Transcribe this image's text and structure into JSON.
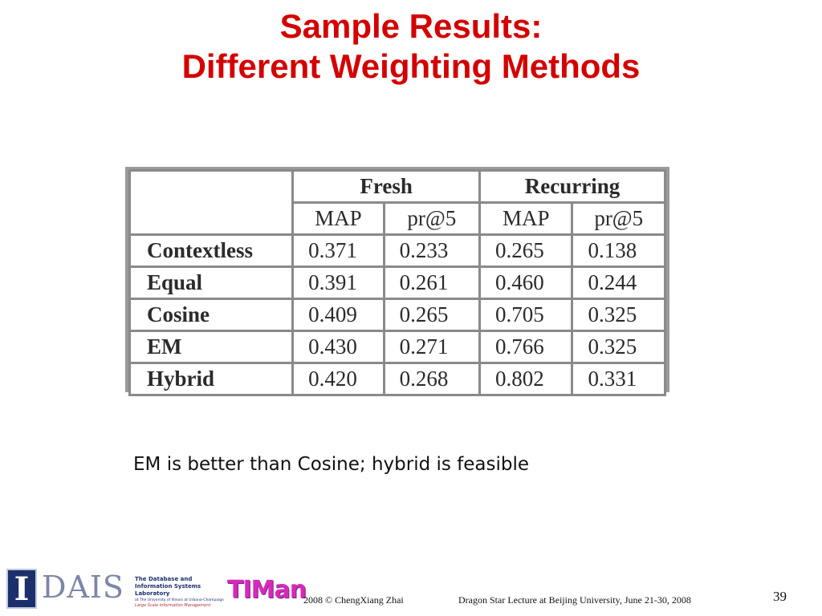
{
  "slide": {
    "title_line1": "Sample Results:",
    "title_line2": "Different Weighting Methods"
  },
  "table": {
    "group_headers": [
      "Fresh",
      "Recurring"
    ],
    "sub_headers": [
      "MAP",
      "pr@5",
      "MAP",
      "pr@5"
    ],
    "rows": [
      {
        "label": "Contextless",
        "values": [
          "0.371",
          "0.233",
          "0.265",
          "0.138"
        ]
      },
      {
        "label": "Equal",
        "values": [
          "0.391",
          "0.261",
          "0.460",
          "0.244"
        ]
      },
      {
        "label": "Cosine",
        "values": [
          "0.409",
          "0.265",
          "0.705",
          "0.325"
        ]
      },
      {
        "label": "EM",
        "values": [
          "0.430",
          "0.271",
          "0.766",
          "0.325"
        ]
      },
      {
        "label": "Hybrid",
        "values": [
          "0.420",
          "0.268",
          "0.802",
          "0.331"
        ]
      }
    ]
  },
  "caption": "EM is better than Cosine; hybrid is feasible",
  "footer": {
    "logo_letter": "I",
    "logo_name": "DAIS",
    "lab_line1": "The Database and Information Systems Laboratory",
    "lab_line2": "at The University of Illinois at Urbana-Champaign",
    "lab_line3": "Large Scale Information Management",
    "timan": "TIMan",
    "copyright": "2008  © ChengXiang Zhai",
    "lecture": "Dragon Star Lecture at Beijing University, June 21-30, 2008",
    "page_number": "39"
  },
  "colors": {
    "title": "#d40000",
    "table_border": "#8a8a8a",
    "timan": "#d62ab8",
    "dais_blue": "#1d2f6b"
  }
}
